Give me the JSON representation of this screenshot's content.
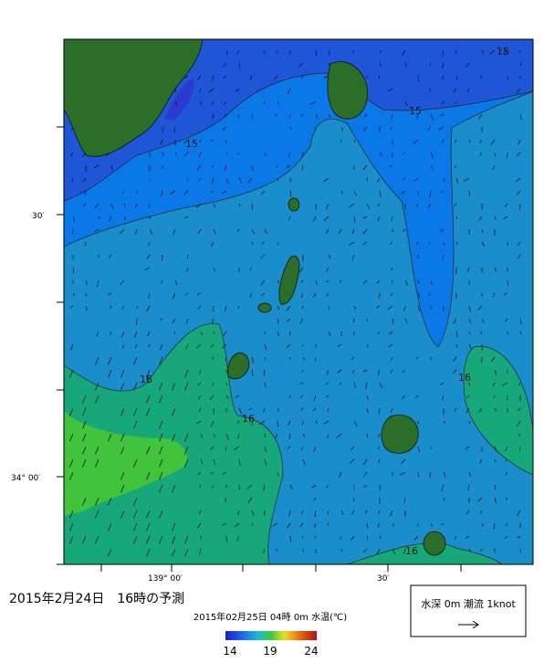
{
  "map": {
    "lat_labels": [
      "30′",
      "34° 00′"
    ],
    "lon_labels": [
      "139° 00′",
      "30′"
    ],
    "contour_labels": [
      "15",
      "15",
      "15",
      "16",
      "16",
      "16",
      "16"
    ]
  },
  "caption": "2015年2月24日　16時の予測",
  "subtitle": "2015年02月25日 04時 0m 水温(℃)",
  "colorbar": {
    "ticks": [
      "14",
      "19",
      "24"
    ]
  },
  "legend": {
    "text": "水深 0m 潮流 1knot"
  }
}
